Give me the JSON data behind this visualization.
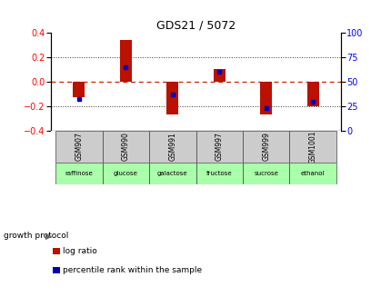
{
  "title": "GDS21 / 5072",
  "samples": [
    "GSM907",
    "GSM990",
    "GSM991",
    "GSM997",
    "GSM999",
    "GSM1001"
  ],
  "conditions": [
    "raffinose",
    "glucose",
    "galactose",
    "fructose",
    "sucrose",
    "ethanol"
  ],
  "log_ratios": [
    -0.13,
    0.34,
    -0.27,
    0.1,
    -0.27,
    -0.2
  ],
  "percentile_ranks": [
    32,
    65,
    37,
    60,
    23,
    30
  ],
  "bar_color": "#bb1100",
  "dot_color": "#0000bb",
  "ylim_left": [
    -0.4,
    0.4
  ],
  "ylim_right": [
    0,
    100
  ],
  "yticks_left": [
    -0.4,
    -0.2,
    0.0,
    0.2,
    0.4
  ],
  "yticks_right": [
    0,
    25,
    50,
    75,
    100
  ],
  "sample_bg": "#cccccc",
  "condition_bg": "#aaffaa",
  "zero_line_color": "#cc2200",
  "dotted_color": "#333333",
  "legend_log_ratio": "log ratio",
  "legend_percentile": "percentile rank within the sample",
  "growth_protocol_label": "growth protocol"
}
